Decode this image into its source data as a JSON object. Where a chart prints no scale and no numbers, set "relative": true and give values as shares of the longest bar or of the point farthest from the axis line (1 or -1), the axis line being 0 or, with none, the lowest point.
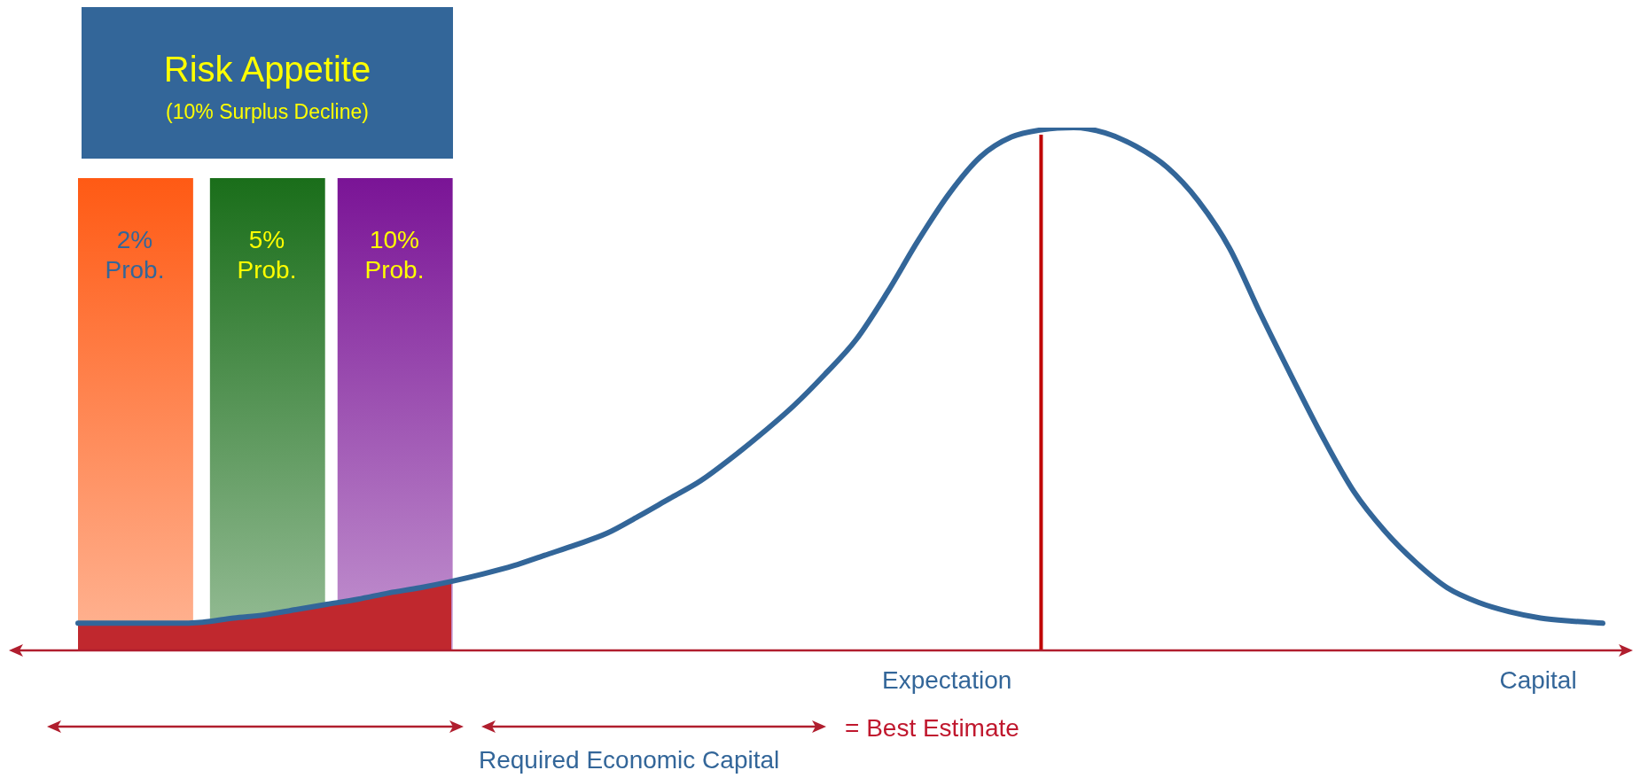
{
  "chart_data": {
    "type": "line",
    "title": "Risk Appetite",
    "subtitle": "(10% Surplus Decline)",
    "relative": true,
    "legend": false,
    "marker": "none",
    "line_style": "solid",
    "categories": [
      null,
      null,
      null,
      null,
      null,
      null,
      null,
      null,
      null,
      null,
      null,
      null,
      null,
      null,
      null,
      null,
      null,
      null,
      null,
      null,
      null,
      null,
      null,
      null,
      null,
      null,
      null,
      null,
      null,
      null,
      null,
      null,
      null,
      null,
      null,
      null,
      null,
      null,
      null,
      null,
      null,
      null,
      null,
      null,
      null,
      null,
      null,
      null,
      null,
      null
    ],
    "series": [
      {
        "type": "line",
        "color": "#336699",
        "values": [
          0.052,
          0.052,
          0.052,
          0.052,
          0.054,
          0.062,
          0.068,
          0.078,
          0.088,
          0.098,
          0.11,
          0.12,
          0.132,
          0.146,
          0.162,
          0.182,
          0.202,
          0.224,
          0.256,
          0.29,
          0.324,
          0.368,
          0.416,
          0.468,
          0.528,
          0.594,
          0.684,
          0.784,
          0.874,
          0.944,
          0.982,
          0.996,
          1,
          0.99,
          0.964,
          0.924,
          0.86,
          0.77,
          0.644,
          0.524,
          0.408,
          0.304,
          0.228,
          0.168,
          0.12,
          0.092,
          0.074,
          0.062,
          0.056,
          0.052
        ]
      },
      {
        "type": "area",
        "color": "#c0282e",
        "values": [
          0.052,
          0.052,
          0.052,
          0.052,
          0.054,
          0.062,
          0.068,
          0.078,
          0.088,
          0.098,
          0.11,
          0.12,
          0.132,
          null,
          null,
          null,
          null,
          null,
          null,
          null,
          null,
          null,
          null,
          null,
          null,
          null,
          null,
          null,
          null,
          null,
          null,
          null,
          null,
          null,
          null,
          null,
          null,
          null,
          null,
          null,
          null,
          null,
          null,
          null,
          null,
          null,
          null,
          null,
          null,
          null
        ]
      }
    ],
    "annotations": [
      "Expectation",
      "Capital",
      "= Best Estimate",
      "Required Economic Capital",
      "2% Prob.",
      "5% Prob.",
      "10% Prob."
    ]
  }
}
